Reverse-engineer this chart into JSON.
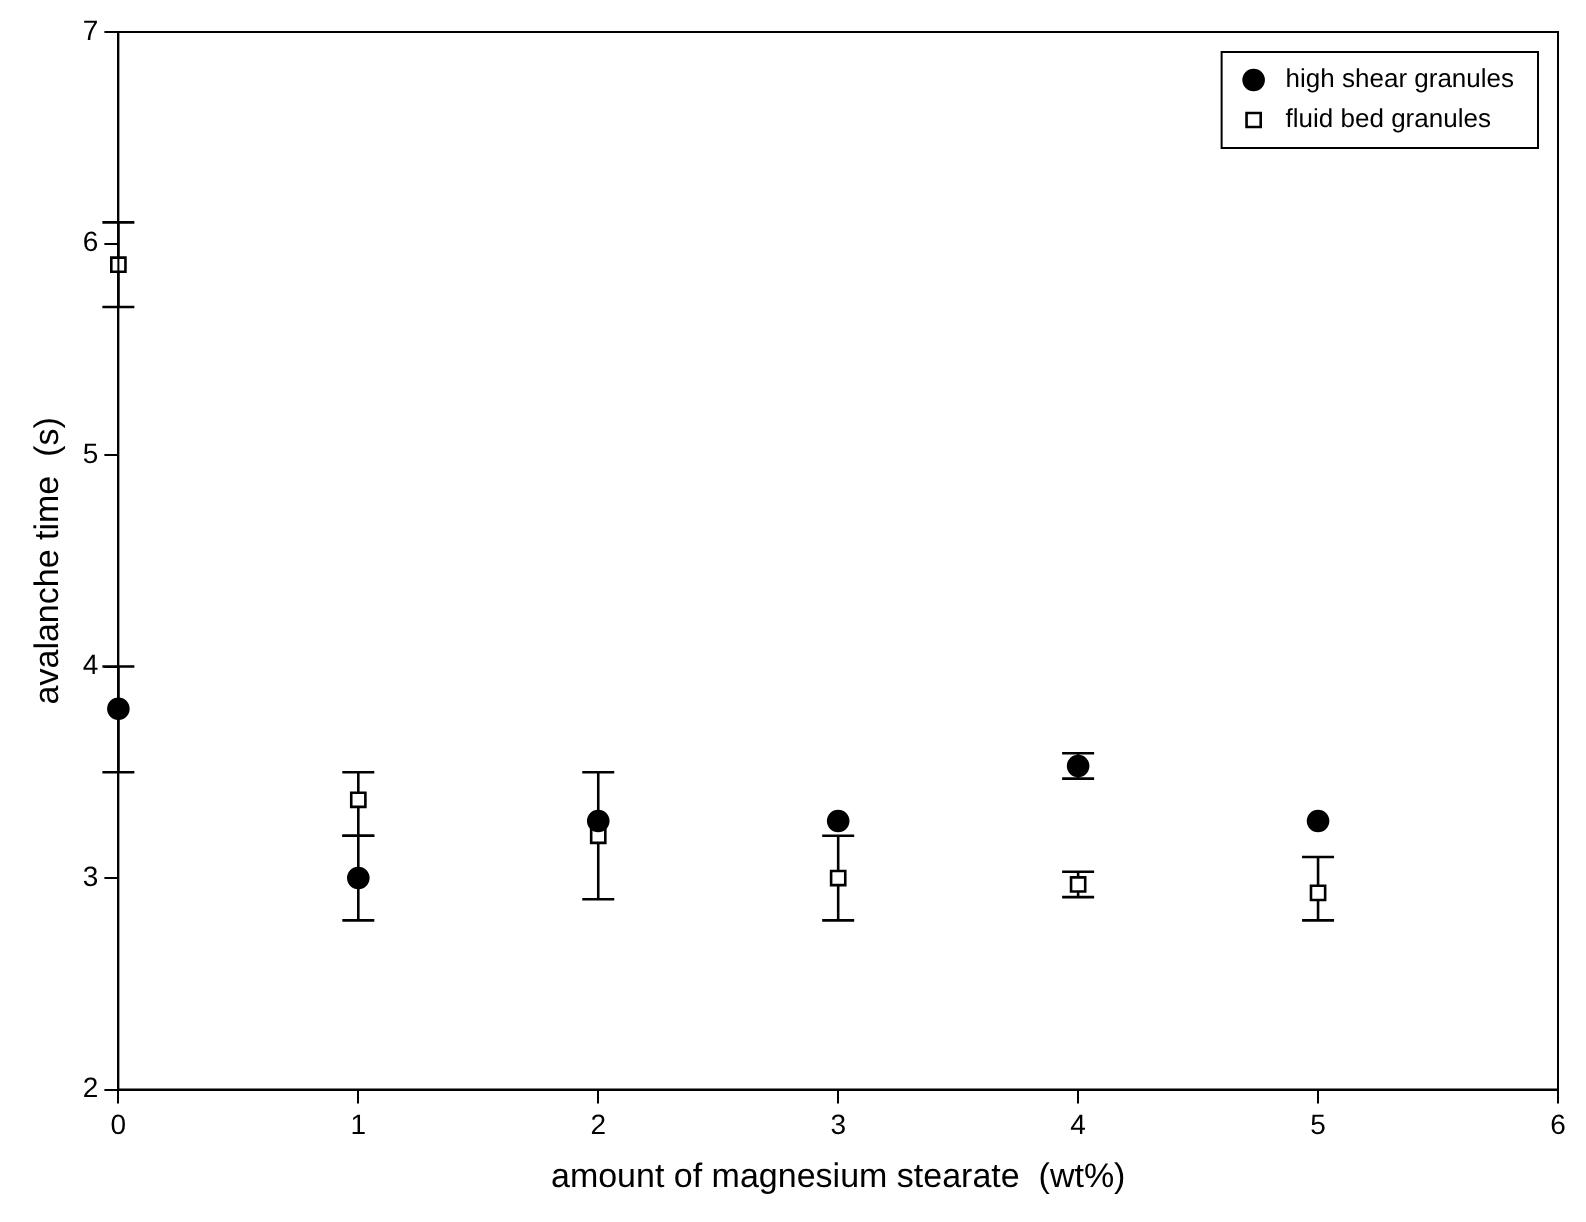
{
  "chart_data": {
    "type": "scatter",
    "xlabel": "amount of magnesium stearate  (wt%)",
    "ylabel": "avalanche time  (s)",
    "x": [
      0,
      1,
      2,
      3,
      4,
      5
    ],
    "series": [
      {
        "name": "high shear granules",
        "color": "#000000",
        "marker": "circle",
        "values": [
          3.8,
          3.0,
          3.27,
          3.27,
          3.53,
          3.27
        ],
        "errors": [
          [
            3.5,
            4.0
          ],
          0.2,
          null,
          null,
          0.06,
          null
        ]
      },
      {
        "name": "fluid bed granules",
        "color": "#000000",
        "marker": "square",
        "values": [
          5.9,
          3.37,
          3.2,
          3.0,
          2.97,
          2.93
        ],
        "errors": [
          0.2,
          [
            3.2,
            3.5
          ],
          0.3,
          0.2,
          0.06,
          [
            2.8,
            3.1
          ]
        ]
      }
    ],
    "xlim": [
      0,
      6
    ],
    "xticks": [
      0,
      1,
      2,
      3,
      4,
      5,
      6
    ],
    "ylim": [
      2,
      7
    ],
    "yticks": [
      2,
      3,
      4,
      5,
      6,
      7
    ],
    "grid": false,
    "legend": "top right"
  }
}
